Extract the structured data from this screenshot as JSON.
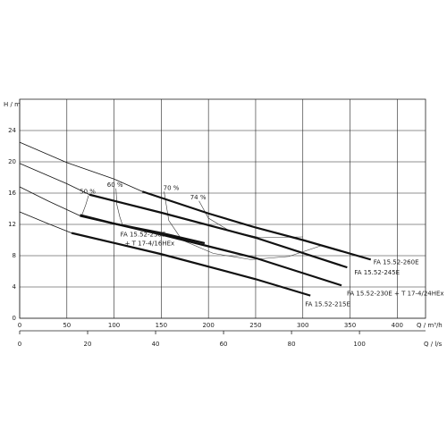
{
  "chart_data": {
    "type": "line",
    "ylabel": "H / m",
    "xlabel": "Q / m³/h",
    "x2label": "Q / l/s",
    "xlim": [
      0,
      430
    ],
    "xticks": [
      0,
      50,
      100,
      150,
      200,
      250,
      300,
      350,
      400
    ],
    "x2lim": [
      0,
      119.44
    ],
    "x2ticks": [
      0,
      20,
      40,
      60,
      80,
      100
    ],
    "ylim": [
      0,
      28
    ],
    "yticks": [
      0,
      4,
      8,
      12,
      16,
      20,
      24
    ],
    "grid": true,
    "series": [
      {
        "name": "FA 15.52-260E",
        "color": "#111",
        "curve_x": [
          0,
          50,
          100,
          130
        ],
        "curve_values": [
          22.5,
          19.9,
          17.8,
          16.2
        ],
        "x": [
          130,
          200,
          250,
          300,
          372
        ],
        "values": [
          16.2,
          13.4,
          11.6,
          10.0,
          7.5
        ]
      },
      {
        "name": "FA 15.52-245E",
        "color": "#111",
        "curve_x": [
          0,
          50,
          74
        ],
        "curve_values": [
          19.8,
          17.2,
          15.8
        ],
        "x": [
          74,
          150,
          250,
          347
        ],
        "values": [
          15.8,
          13.5,
          10.3,
          6.5
        ]
      },
      {
        "name": "FA 15.52-230E + T 17-4/24HEx",
        "color": "#111",
        "curve_x": [
          0,
          30,
          64
        ],
        "curve_values": [
          16.8,
          15.0,
          13.1
        ],
        "x": [
          64,
          150,
          250,
          341
        ],
        "values": [
          13.1,
          10.7,
          7.7,
          4.2
        ]
      },
      {
        "name": [
          "FA 15.52-230E",
          "+ T 17-4/16HEx"
        ],
        "color": "#111",
        "x": [
          64,
          100,
          150,
          196
        ],
        "values": [
          13.2,
          12.1,
          10.9,
          9.6
        ]
      },
      {
        "name": "FA 15.52-215E",
        "color": "#111",
        "curve_x": [
          0,
          30,
          55
        ],
        "curve_values": [
          13.6,
          12.1,
          10.9
        ],
        "x": [
          55,
          150,
          250,
          308
        ],
        "values": [
          10.9,
          8.2,
          5.0,
          2.9
        ]
      }
    ],
    "efficiency_curves": [
      {
        "name": "50 %",
        "x": [
          73,
          70,
          66
        ],
        "values": [
          15.7,
          14.5,
          13.2
        ]
      },
      {
        "name": "60 %",
        "x": [
          102,
          103,
          106,
          109
        ],
        "values": [
          16.6,
          14.5,
          13.0,
          11.9
        ]
      },
      {
        "name": "70 %",
        "x": [
          153,
          158,
          172,
          205,
          245,
          285,
          320
        ],
        "values": [
          16.2,
          12.5,
          10.0,
          8.3,
          7.5,
          7.9,
          9.3
        ]
      },
      {
        "name": "74 %",
        "x": [
          190,
          200,
          222,
          255,
          300
        ],
        "values": [
          15.0,
          12.8,
          11.2,
          10.3,
          10.4
        ]
      }
    ]
  }
}
